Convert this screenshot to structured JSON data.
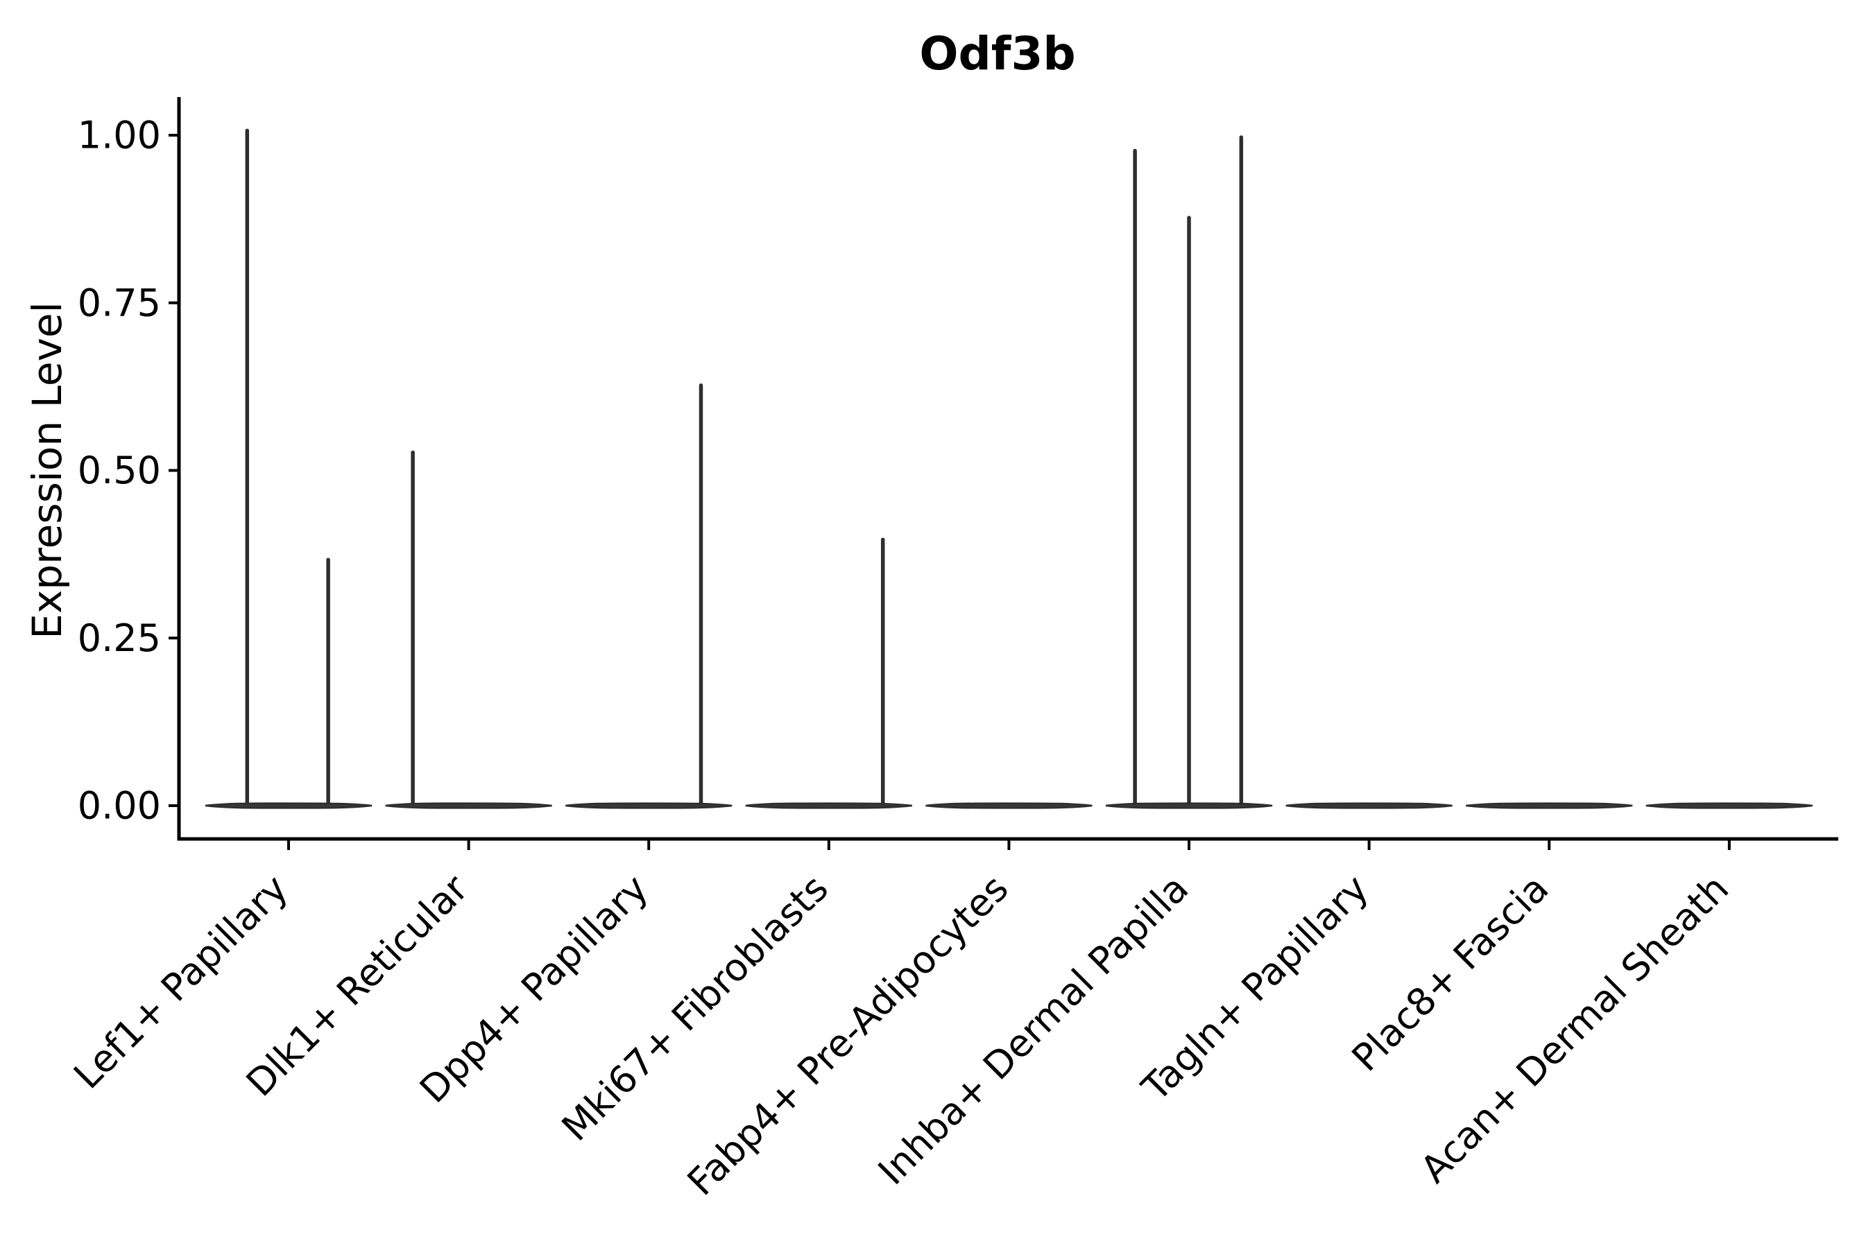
{
  "figure": {
    "title": "Odf3b",
    "background": "#ffffff",
    "y_axis": {
      "label": "Expression Level",
      "tick_labels": [
        "0.00",
        "0.25",
        "0.50",
        "0.75",
        "1.00"
      ],
      "tick_values": [
        0,
        0.25,
        0.5,
        0.75,
        1.0
      ]
    },
    "x_axis": {
      "label": "",
      "tick_label_rotation_deg": 45
    },
    "colors": {
      "violin_fill": "#383838",
      "violin_stroke": "#2e2e2e",
      "axis": "#000000",
      "text": "#000000"
    }
  },
  "chart_data": {
    "type": "violin",
    "title": "Odf3b",
    "xlabel": "",
    "ylabel": "Expression Level",
    "ylim": [
      0,
      1.01
    ],
    "yticks": [
      0,
      0.25,
      0.5,
      0.75,
      1.0
    ],
    "legend": "none",
    "grid": false,
    "categories": [
      "Lef1+ Papillary",
      "Dlk1+ Reticular",
      "Dpp4+ Papillary",
      "Mki67+ Fibroblasts",
      "Fabp4+ Pre-Adipocytes",
      "Inhba+ Dermal Papilla",
      "Tagln+ Papillary",
      "Plac8+ Fascia",
      "Acan+ Dermal Sheath"
    ],
    "series": [
      {
        "name": "Lef1+ Papillary",
        "baseline_value": 0,
        "spikes": [
          {
            "value": 1.01,
            "offset": -0.23
          },
          {
            "value": 0.37,
            "offset": 0.22
          }
        ]
      },
      {
        "name": "Dlk1+ Reticular",
        "baseline_value": 0,
        "spikes": [
          {
            "value": 0.53,
            "offset": -0.31
          }
        ]
      },
      {
        "name": "Dpp4+ Papillary",
        "baseline_value": 0,
        "spikes": [
          {
            "value": 0.63,
            "offset": 0.29
          }
        ]
      },
      {
        "name": "Mki67+ Fibroblasts",
        "baseline_value": 0,
        "spikes": [
          {
            "value": 0.4,
            "offset": 0.3
          }
        ]
      },
      {
        "name": "Fabp4+ Pre-Adipocytes",
        "baseline_value": 0,
        "spikes": []
      },
      {
        "name": "Inhba+ Dermal Papilla",
        "baseline_value": 0,
        "spikes": [
          {
            "value": 0.98,
            "offset": -0.3
          },
          {
            "value": 0.88,
            "offset": 0.0
          },
          {
            "value": 1.0,
            "offset": 0.29
          }
        ]
      },
      {
        "name": "Tagln+ Papillary",
        "baseline_value": 0,
        "spikes": []
      },
      {
        "name": "Plac8+ Fascia",
        "baseline_value": 0,
        "spikes": []
      },
      {
        "name": "Acan+ Dermal Sheath",
        "baseline_value": 0,
        "spikes": []
      }
    ]
  }
}
